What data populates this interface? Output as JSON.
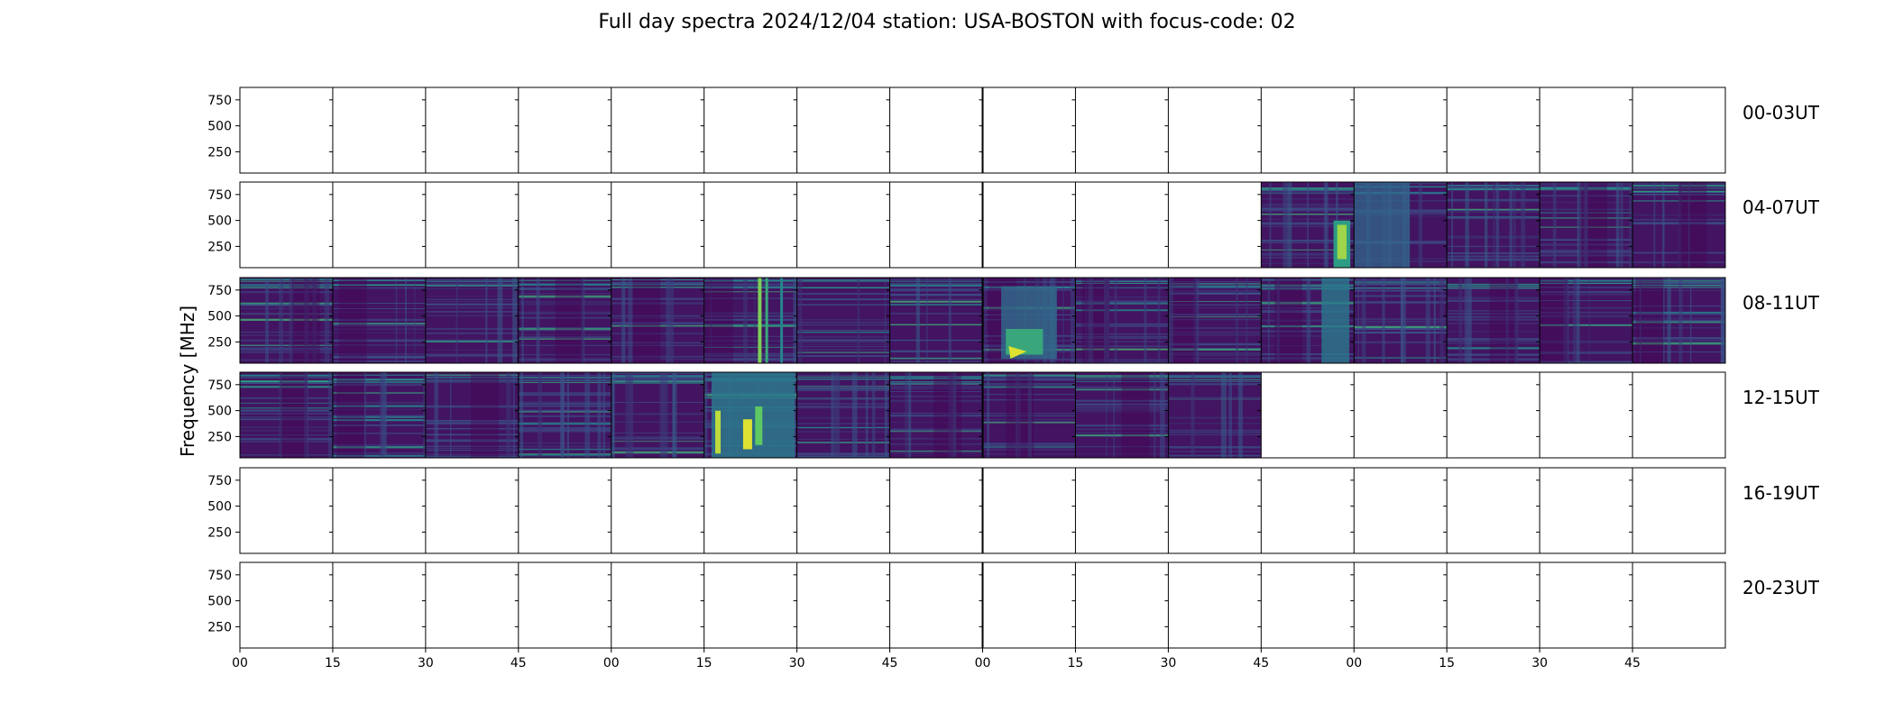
{
  "chart_data": {
    "type": "heatmap",
    "title": "Full day spectra 2024/12/04 station: USA-BOSTON with focus-code: 02",
    "ylabel": "Frequency [MHz]",
    "xlabel": "",
    "ylim": [
      45,
      870
    ],
    "y_ticks": [
      250,
      500,
      750
    ],
    "x_tick_labels": [
      "00",
      "15",
      "30",
      "45",
      "00",
      "15",
      "30",
      "45",
      "00",
      "15",
      "30",
      "45",
      "00",
      "15",
      "30",
      "45"
    ],
    "row_labels": [
      "00-03UT",
      "04-07UT",
      "08-11UT",
      "12-15UT",
      "16-19UT",
      "20-23UT"
    ],
    "panels_per_row": 16,
    "panel_minutes": 15,
    "colormap": "viridis",
    "rows": [
      {
        "label": "00-03UT",
        "has_data": [
          0,
          0,
          0,
          0,
          0,
          0,
          0,
          0,
          0,
          0,
          0,
          0,
          0,
          0,
          0,
          0
        ]
      },
      {
        "label": "04-07UT",
        "has_data": [
          0,
          0,
          0,
          0,
          0,
          0,
          0,
          0,
          0,
          0,
          0,
          1,
          1,
          1,
          1,
          1
        ]
      },
      {
        "label": "08-11UT",
        "has_data": [
          1,
          1,
          1,
          1,
          1,
          1,
          1,
          1,
          1,
          1,
          1,
          1,
          1,
          1,
          1,
          1
        ]
      },
      {
        "label": "12-15UT",
        "has_data": [
          1,
          1,
          1,
          1,
          1,
          1,
          1,
          1,
          1,
          1,
          1,
          0,
          0,
          0,
          0,
          0
        ]
      },
      {
        "label": "16-19UT",
        "has_data": [
          0,
          0,
          0,
          0,
          0,
          0,
          0,
          0,
          0,
          0,
          0,
          0,
          0,
          0,
          0,
          0
        ]
      },
      {
        "label": "20-23UT",
        "has_data": [
          0,
          0,
          0,
          0,
          0,
          0,
          0,
          0,
          0,
          0,
          0,
          0,
          0,
          0,
          0,
          0
        ]
      }
    ],
    "bright_features": [
      {
        "row": 1,
        "panel": 11,
        "note": "bright broadband emission near end of panel"
      },
      {
        "row": 1,
        "panel": 12,
        "note": "elevated broadband"
      },
      {
        "row": 2,
        "panel": 5,
        "note": "narrow vertical bright stripes"
      },
      {
        "row": 2,
        "panel": 8,
        "note": "bright low-frequency burst"
      },
      {
        "row": 2,
        "panel": 11,
        "note": "broadband brightening"
      },
      {
        "row": 3,
        "panel": 5,
        "note": "strong broadband burst, yellow"
      }
    ]
  }
}
